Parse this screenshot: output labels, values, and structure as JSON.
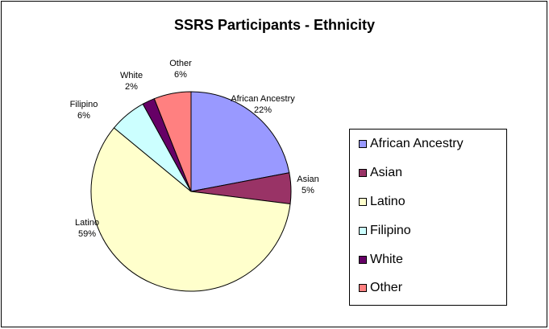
{
  "chart_data": {
    "type": "pie",
    "title": "SSRS Participants - Ethnicity",
    "categories": [
      "African Ancestry",
      "Asian",
      "Latino",
      "Filipino",
      "White",
      "Other"
    ],
    "values": [
      22,
      5,
      59,
      6,
      2,
      6
    ],
    "percent_labels": [
      "22%",
      "5%",
      "59%",
      "6%",
      "2%",
      "6%"
    ],
    "colors": [
      "#9999FF",
      "#993366",
      "#FFFFCC",
      "#CCFFFF",
      "#660066",
      "#FF8080"
    ],
    "start_angle_deg": 0,
    "direction": "clockwise",
    "legend": {
      "position": "right",
      "entries": [
        "African Ancestry",
        "Asian",
        "Latino",
        "Filipino",
        "White",
        "Other"
      ]
    }
  }
}
